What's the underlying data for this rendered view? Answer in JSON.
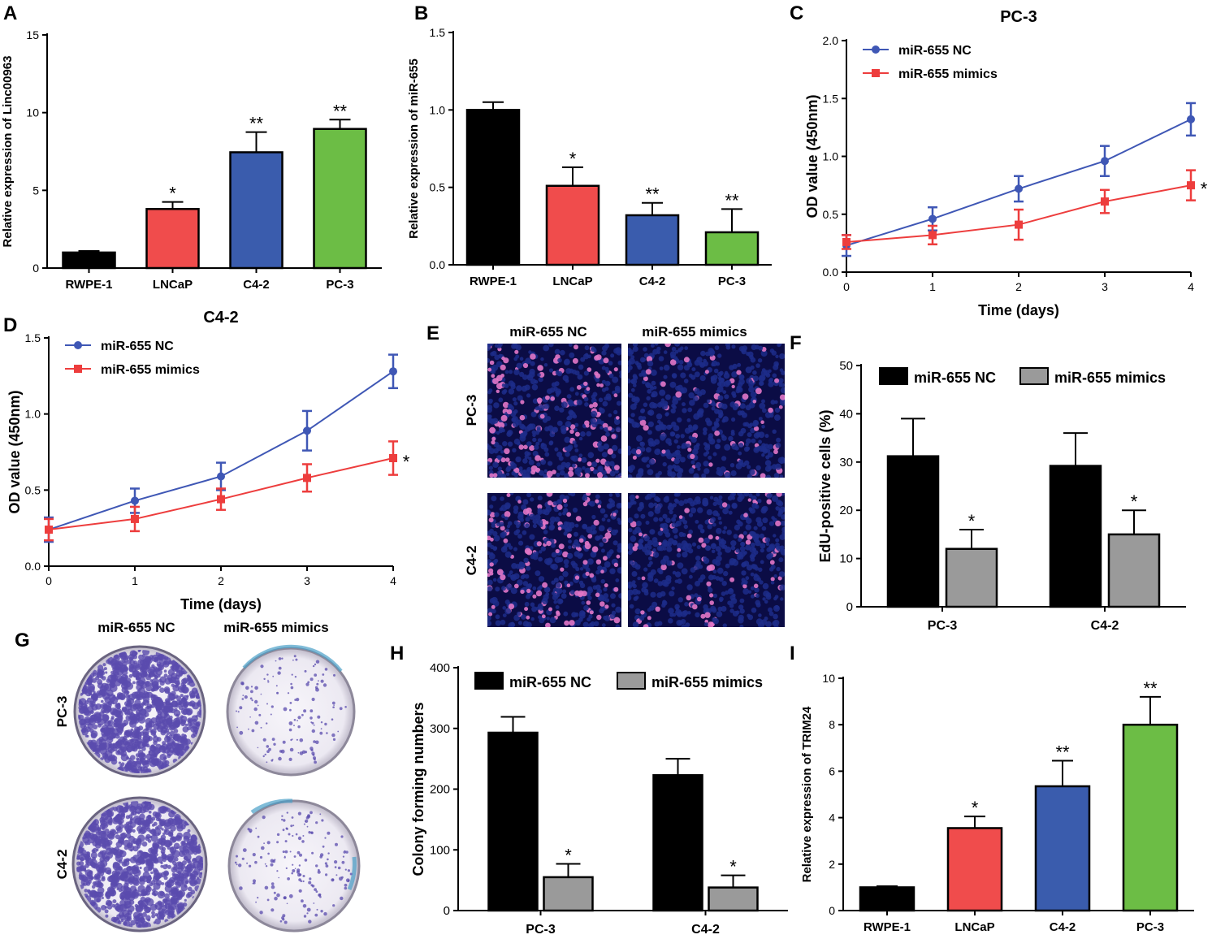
{
  "colors": {
    "black": "#000000",
    "red": "#f04c4c",
    "blue": "#3a5cad",
    "green": "#6cbd45",
    "gray": "#9a9a9a",
    "nc_line": "#3f57b5",
    "mim_line": "#ed3d3d",
    "dapi": "#1d2d8a",
    "edu": "#e277c8",
    "crystal": "#5a4bae"
  },
  "chart_data": [
    {
      "panel": "A",
      "type": "bar",
      "categories": [
        "RWPE-1",
        "LNCaP",
        "C4-2",
        "PC-3"
      ],
      "values": [
        1.0,
        3.8,
        7.45,
        8.95
      ],
      "errors": [
        0.1,
        0.45,
        1.3,
        0.6
      ],
      "significance": [
        "",
        "*",
        "**",
        "**"
      ],
      "ylabel": "Relative expression of Linc00963",
      "xlabel": "",
      "ylim": [
        0,
        15
      ],
      "yticks": [
        0,
        5,
        10,
        15
      ],
      "colors": [
        "#000000",
        "#f04c4c",
        "#3a5cad",
        "#6cbd45"
      ]
    },
    {
      "panel": "B",
      "type": "bar",
      "categories": [
        "RWPE-1",
        "LNCaP",
        "C4-2",
        "PC-3"
      ],
      "values": [
        1.0,
        0.51,
        0.32,
        0.21
      ],
      "errors": [
        0.05,
        0.12,
        0.08,
        0.15
      ],
      "significance": [
        "",
        "*",
        "**",
        "**"
      ],
      "ylabel": "Relative expression of miR-655",
      "xlabel": "",
      "ylim": [
        0,
        1.5
      ],
      "yticks": [
        "0.0",
        "0.5",
        "1.0",
        "1.5"
      ],
      "colors": [
        "#000000",
        "#f04c4c",
        "#3a5cad",
        "#6cbd45"
      ]
    },
    {
      "panel": "C",
      "type": "line",
      "title": "PC-3",
      "x": [
        0,
        1,
        2,
        3,
        4
      ],
      "series": [
        {
          "name": "miR-655 NC",
          "values": [
            0.23,
            0.46,
            0.72,
            0.96,
            1.32
          ],
          "errors": [
            0.09,
            0.1,
            0.11,
            0.13,
            0.14
          ],
          "color": "#3f57b5",
          "marker": "circle"
        },
        {
          "name": "miR-655 mimics",
          "values": [
            0.26,
            0.32,
            0.41,
            0.61,
            0.75
          ],
          "errors": [
            0.06,
            0.08,
            0.13,
            0.1,
            0.13
          ],
          "color": "#ed3d3d",
          "marker": "square"
        }
      ],
      "end_significance": "*",
      "xlabel": "Time (days)",
      "ylabel": "OD value (450nm)",
      "ylim": [
        0,
        2.0
      ],
      "yticks": [
        "0.0",
        "0.5",
        "1.0",
        "1.5",
        "2.0"
      ],
      "xticks": [
        "0",
        "1",
        "2",
        "3",
        "4"
      ]
    },
    {
      "panel": "D",
      "type": "line",
      "title": "C4-2",
      "x": [
        0,
        1,
        2,
        3,
        4
      ],
      "series": [
        {
          "name": "miR-655 NC",
          "values": [
            0.24,
            0.43,
            0.59,
            0.89,
            1.28
          ],
          "errors": [
            0.08,
            0.08,
            0.09,
            0.13,
            0.11
          ],
          "color": "#3f57b5",
          "marker": "circle"
        },
        {
          "name": "miR-655 mimics",
          "values": [
            0.24,
            0.31,
            0.44,
            0.58,
            0.71
          ],
          "errors": [
            0.07,
            0.08,
            0.07,
            0.09,
            0.11
          ],
          "color": "#ed3d3d",
          "marker": "square"
        }
      ],
      "end_significance": "*",
      "xlabel": "Time (days)",
      "ylabel": "OD value (450nm)",
      "ylim": [
        0,
        1.5
      ],
      "yticks": [
        "0.0",
        "0.5",
        "1.0",
        "1.5"
      ],
      "xticks": [
        "0",
        "1",
        "2",
        "3",
        "4"
      ]
    },
    {
      "panel": "F",
      "type": "bar",
      "categories": [
        "PC-3",
        "C4-2"
      ],
      "series": [
        {
          "name": "miR-655 NC",
          "values": [
            31.2,
            29.2
          ],
          "errors": [
            7.8,
            6.8
          ],
          "color": "#000000"
        },
        {
          "name": "miR-655 mimics",
          "values": [
            12.0,
            15.0
          ],
          "errors": [
            4.0,
            5.0
          ],
          "color": "#9a9a9a"
        }
      ],
      "significance": [
        "*",
        "*"
      ],
      "ylabel": "EdU-positive cells (%)",
      "xlabel": "",
      "ylim": [
        0,
        50
      ],
      "yticks": [
        "0",
        "10",
        "20",
        "30",
        "40",
        "50"
      ]
    },
    {
      "panel": "H",
      "type": "bar",
      "categories": [
        "PC-3",
        "C4-2"
      ],
      "series": [
        {
          "name": "miR-655 NC",
          "values": [
            293,
            223
          ],
          "errors": [
            26,
            27
          ],
          "color": "#000000"
        },
        {
          "name": "miR-655 mimics",
          "values": [
            55,
            38
          ],
          "errors": [
            22,
            20
          ],
          "color": "#9a9a9a"
        }
      ],
      "significance": [
        "*",
        "*"
      ],
      "ylabel": "Colony forming numbers",
      "xlabel": "",
      "ylim": [
        0,
        400
      ],
      "yticks": [
        "0",
        "100",
        "200",
        "300",
        "400"
      ]
    },
    {
      "panel": "I",
      "type": "bar",
      "categories": [
        "RWPE-1",
        "LNCaP",
        "C4-2",
        "PC-3"
      ],
      "values": [
        1.0,
        3.55,
        5.35,
        8.0
      ],
      "errors": [
        0.05,
        0.5,
        1.1,
        1.2
      ],
      "significance": [
        "",
        "*",
        "**",
        "**"
      ],
      "ylabel": "Relative expression of TRIM24",
      "xlabel": "",
      "ylim": [
        0,
        10
      ],
      "yticks": [
        "0",
        "2",
        "4",
        "6",
        "8",
        "10"
      ],
      "colors": [
        "#000000",
        "#f04c4c",
        "#3a5cad",
        "#6cbd45"
      ]
    }
  ],
  "panels": {
    "A": {
      "letter": "A"
    },
    "B": {
      "letter": "B"
    },
    "C": {
      "letter": "C"
    },
    "D": {
      "letter": "D"
    },
    "E": {
      "letter": "E",
      "columns": [
        "miR-655 NC",
        "miR-655 mimics"
      ],
      "rows": [
        "PC-3",
        "C4-2"
      ]
    },
    "F": {
      "letter": "F"
    },
    "G": {
      "letter": "G",
      "columns": [
        "miR-655 NC",
        "miR-655 mimics"
      ],
      "rows": [
        "PC-3",
        "C4-2"
      ]
    },
    "H": {
      "letter": "H"
    },
    "I": {
      "letter": "I"
    }
  }
}
